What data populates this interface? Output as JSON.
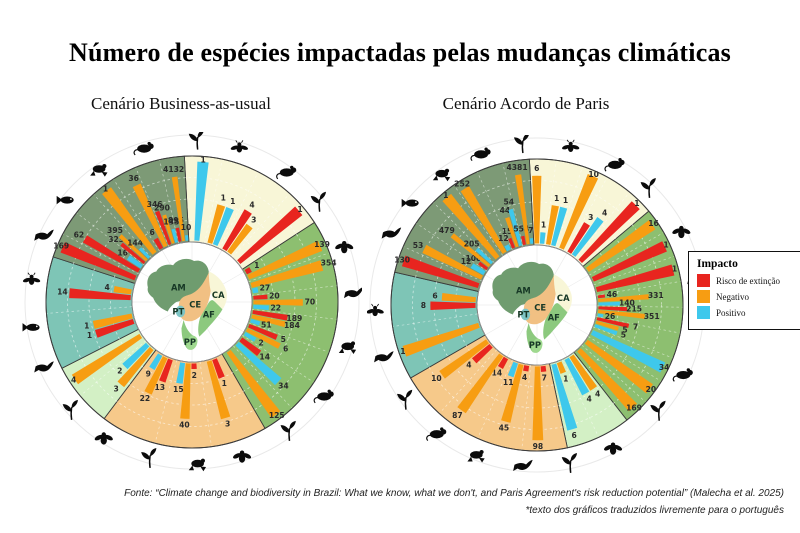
{
  "title": "Número de espécies impactadas pelas mudanças climáticas",
  "legend": {
    "title": "Impacto",
    "items": [
      {
        "key": "R",
        "label": "Risco de extinção",
        "color": "#e8251f"
      },
      {
        "key": "O",
        "label": "Negativo",
        "color": "#f79d12"
      },
      {
        "key": "B",
        "label": "Positivo",
        "color": "#3ec8ec"
      }
    ]
  },
  "footer": {
    "line1": "Fonte: “Climate change and biodiversity in Brazil: What we know, what we don't, and Paris Agreement's risk reduction potential” (Malecha et al. 2025)",
    "line2": "*texto dos gráficos traduzidos livremente para o português"
  },
  "map": {
    "labels": [
      "AM",
      "CE",
      "CA",
      "AF",
      "PP",
      "PT"
    ],
    "colors": {
      "AM": "#6f9c6f",
      "CE": "#f1c083",
      "CA": "#f8f6d7",
      "AF": "#8cc97e",
      "PP": "#9fd98f",
      "PT": "#7ec5c5"
    }
  },
  "chart_data": {
    "type": "radial-bar",
    "unit": "número de espécies",
    "impact_colors": {
      "R": "#e8251f",
      "O": "#f79d12",
      "B": "#3ec8ec"
    },
    "impact_names": {
      "R": "Risco de extinção",
      "O": "Negativo",
      "B": "Positivo"
    },
    "charts": [
      {
        "id": "business-as-usual",
        "subtitle": "Cenário Business-as-usual",
        "sections": [
          {
            "id": "CA",
            "color": "#f8f6d7",
            "start": -3,
            "end": 57,
            "groups": [
              [
                [
                  "B",
                  1
                ]
              ],
              [
                [
                  "O",
                  1
                ],
                [
                  "B",
                  1
                ]
              ],
              [
                [
                  "R",
                  4
                ],
                [
                  "O",
                  3
                ]
              ],
              [
                [
                  "R",
                  1
                ]
              ]
            ]
          },
          {
            "id": "AF",
            "color": "#8dbf70",
            "start": 57,
            "end": 150,
            "groups": [
              [
                [
                  "R",
                  1
                ],
                [
                  "O",
                  139
                ]
              ],
              [
                [
                  "O",
                  354
                ],
                [
                  "B",
                  27
                ]
              ],
              [
                [
                  "R",
                  20
                ],
                [
                  "O",
                  70
                ],
                [
                  "B",
                  22
                ]
              ],
              [
                [
                  "R",
                  189
                ],
                [
                  "O",
                  184
                ],
                [
                  "B",
                  51
                ]
              ],
              [
                [
                  "R",
                  5
                ],
                [
                  "O",
                  6
                ],
                [
                  "B",
                  2
                ]
              ],
              [
                [
                  "R",
                  14
                ],
                [
                  "B",
                  34
                ]
              ],
              [
                [
                  "O",
                  125
                ]
              ]
            ]
          },
          {
            "id": "CE",
            "color": "#f6c98a",
            "start": 150,
            "end": 217,
            "groups": [
              [
                [
                  "R",
                  1
                ],
                [
                  "O",
                  3
                ]
              ],
              [
                [
                  "R",
                  2
                ],
                [
                  "O",
                  40
                ],
                [
                  "B",
                  15
                ]
              ],
              [
                [
                  "R",
                  13
                ],
                [
                  "O",
                  22
                ],
                [
                  "B",
                  9
                ]
              ]
            ]
          },
          {
            "id": "PP",
            "color": "#d3f0c5",
            "start": 217,
            "end": 243,
            "groups": [
              [
                [
                  "O",
                  3
                ],
                [
                  "B",
                  2
                ]
              ],
              [
                [
                  "O",
                  4
                ]
              ]
            ]
          },
          {
            "id": "PT",
            "color": "#7ec5b6",
            "start": 243,
            "end": 288,
            "groups": [
              [
                [
                  "R",
                  1
                ],
                [
                  "O",
                  1
                ]
              ],
              [
                [
                  "R",
                  14
                ],
                [
                  "O",
                  4
                ]
              ]
            ]
          },
          {
            "id": "AM",
            "color": "#7d9a76",
            "start": 288,
            "end": 357,
            "groups": [
              [
                [
                  "R",
                  169
                ]
              ],
              [
                [
                  "R",
                  62
                ],
                [
                  "B",
                  16
                ]
              ],
              [
                [
                  "R",
                  323
                ],
                [
                  "O",
                  395
                ],
                [
                  "B",
                  144
                ]
              ],
              [
                [
                  "O",
                  1
                ]
              ],
              [
                [
                  "R",
                  6
                ],
                [
                  "O",
                  36
                ]
              ],
              [
                [
                  "R",
                  346
                ],
                [
                  "O",
                  290
                ],
                [
                  "B",
                  135
                ]
              ],
              [
                [
                  "R",
                  895
                ],
                [
                  "O",
                  4132
                ],
                [
                  "B",
                  10
                ]
              ]
            ]
          }
        ],
        "icons": [
          [
            "plant",
            2
          ],
          [
            "fly",
            17
          ],
          [
            "mouse",
            36
          ],
          [
            "plant",
            52
          ],
          [
            "bee",
            70
          ],
          [
            "bird",
            87
          ],
          [
            "frog",
            106
          ],
          [
            "mouse",
            125
          ],
          [
            "plant",
            143
          ],
          [
            "bee",
            162
          ],
          [
            "frog",
            178
          ],
          [
            "plant",
            195
          ],
          [
            "bee",
            213
          ],
          [
            "plant",
            228
          ],
          [
            "bird",
            246
          ],
          [
            "fish",
            261
          ],
          [
            "fly",
            278
          ],
          [
            "bird",
            294
          ],
          [
            "fish",
            309
          ],
          [
            "frog",
            325
          ],
          [
            "mouse",
            343
          ]
        ]
      },
      {
        "id": "acordo-de-paris",
        "subtitle": "Cenário Acordo de Paris",
        "sections": [
          {
            "id": "CA",
            "color": "#f8f6d7",
            "start": -3,
            "end": 50,
            "groups": [
              [
                [
                  "O",
                  6
                ],
                [
                  "B",
                  1
                ]
              ],
              [
                [
                  "O",
                  1
                ],
                [
                  "B",
                  1
                ]
              ],
              [
                [
                  "O",
                  10
                ]
              ],
              [
                [
                  "R",
                  3
                ],
                [
                  "B",
                  4
                ]
              ],
              [
                [
                  "R",
                  1
                ]
              ]
            ]
          },
          {
            "id": "AF",
            "color": "#8dbf70",
            "start": 50,
            "end": 142,
            "groups": [
              [
                [
                  "O",
                  16
                ]
              ],
              [
                [
                  "R",
                  1
                ]
              ],
              [
                [
                  "R",
                  1
                ]
              ],
              [
                [
                  "R",
                  46
                ],
                [
                  "O",
                  331
                ],
                [
                  "B",
                  140
                ]
              ],
              [
                [
                  "R",
                  215
                ],
                [
                  "O",
                  351
                ],
                [
                  "B",
                  26
                ]
              ],
              [
                [
                  "R",
                  7
                ],
                [
                  "O",
                  5
                ],
                [
                  "B",
                  5
                ]
              ],
              [
                [
                  "B",
                  34
                ]
              ],
              [
                [
                  "O",
                  20
                ]
              ],
              [
                [
                  "O",
                  169
                ]
              ]
            ]
          },
          {
            "id": "PP",
            "color": "#d3f0c5",
            "start": 142,
            "end": 168,
            "groups": [
              [
                [
                  "O",
                  4
                ],
                [
                  "B",
                  4
                ]
              ],
              [
                [
                  "O",
                  1
                ],
                [
                  "B",
                  6
                ]
              ]
            ]
          },
          {
            "id": "CE",
            "color": "#f6c98a",
            "start": 168,
            "end": 240,
            "groups": [
              [
                [
                  "R",
                  7
                ],
                [
                  "O",
                  98
                ]
              ],
              [
                [
                  "R",
                  4
                ],
                [
                  "O",
                  45
                ],
                [
                  "B",
                  11
                ]
              ],
              [
                [
                  "R",
                  14
                ],
                [
                  "O",
                  87
                ]
              ],
              [
                [
                  "R",
                  4
                ],
                [
                  "O",
                  10
                ]
              ]
            ]
          },
          {
            "id": "PT",
            "color": "#7ec5b6",
            "start": 240,
            "end": 283,
            "groups": [
              [
                [
                  "O",
                  1
                ]
              ],
              [
                [
                  "R",
                  8
                ],
                [
                  "O",
                  6
                ]
              ]
            ]
          },
          {
            "id": "AM",
            "color": "#7d9a76",
            "start": 283,
            "end": 357,
            "groups": [
              [
                [
                  "R",
                  130
                ]
              ],
              [
                [
                  "O",
                  53
                ],
                [
                  "B",
                  12
                ]
              ],
              [
                [
                  "R",
                  100
                ],
                [
                  "O",
                  479
                ],
                [
                  "B",
                  205
                ]
              ],
              [
                [
                  "O",
                  1
                ]
              ],
              [
                [
                  "O",
                  252
                ],
                [
                  "B",
                  12
                ]
              ],
              [
                [
                  "R",
                  15
                ],
                [
                  "O",
                  44
                ],
                [
                  "B",
                  54
                ]
              ],
              [
                [
                  "R",
                  554
                ],
                [
                  "O",
                  4381
                ],
                [
                  "B",
                  7
                ]
              ]
            ]
          }
        ],
        "icons": [
          [
            "plant",
            355
          ],
          [
            "fly",
            12
          ],
          [
            "mouse",
            29
          ],
          [
            "plant",
            44
          ],
          [
            "bee",
            63
          ],
          [
            "bird",
            81
          ],
          [
            "frog",
            96
          ],
          [
            "mouse",
            115
          ],
          [
            "plant",
            131
          ],
          [
            "bee",
            152
          ],
          [
            "plant",
            168
          ],
          [
            "bird",
            185
          ],
          [
            "frog",
            202
          ],
          [
            "mouse",
            218
          ],
          [
            "plant",
            234
          ],
          [
            "bird",
            251
          ],
          [
            "fly",
            268
          ],
          [
            "bird",
            296
          ],
          [
            "fish",
            309
          ],
          [
            "frog",
            324
          ],
          [
            "mouse",
            340
          ]
        ]
      }
    ]
  }
}
